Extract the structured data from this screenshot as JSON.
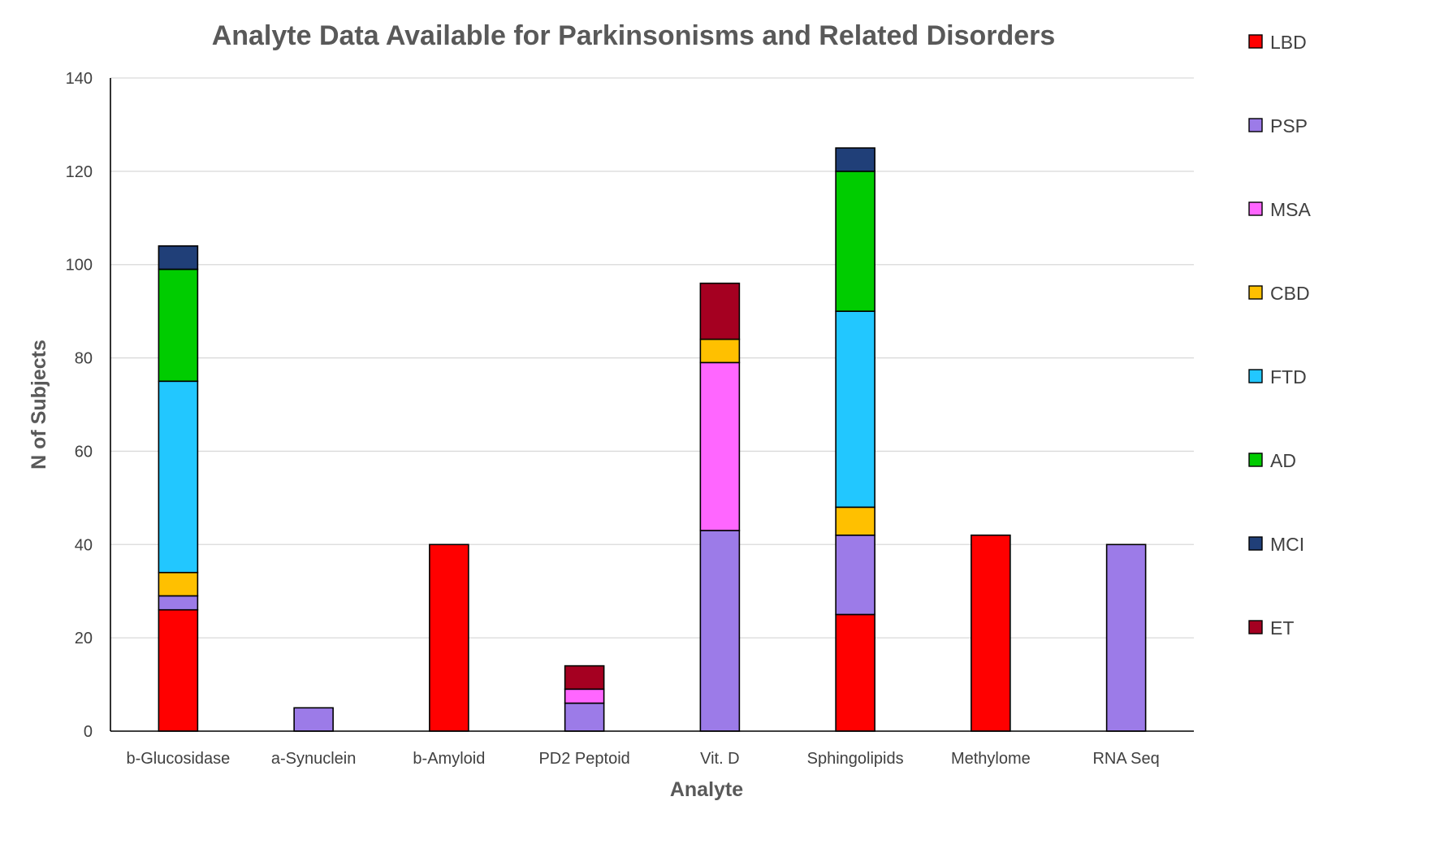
{
  "chart_data": {
    "type": "bar",
    "stacked": true,
    "title": "Analyte Data Available for Parkinsonisms and Related Disorders",
    "xlabel": "Analyte",
    "ylabel": "N of Subjects",
    "ylim": [
      0,
      140
    ],
    "yticks": [
      0,
      20,
      40,
      60,
      80,
      100,
      120,
      140
    ],
    "grid": true,
    "legend_position": "right",
    "categories": [
      "b-Glucosidase",
      "a-Synuclein",
      "b-Amyloid",
      "PD2 Peptoid",
      "Vit. D",
      "Sphingolipids",
      "Methylome",
      "RNA Seq"
    ],
    "series": [
      {
        "name": "LBD",
        "color": "#ff0000",
        "values": [
          26,
          0,
          40,
          0,
          0,
          25,
          42,
          0
        ]
      },
      {
        "name": "PSP",
        "color": "#9c7be8",
        "values": [
          3,
          5,
          0,
          6,
          43,
          17,
          0,
          40
        ]
      },
      {
        "name": "MSA",
        "color": "#ff66ff",
        "values": [
          0,
          0,
          0,
          3,
          36,
          0,
          0,
          0
        ]
      },
      {
        "name": "CBD",
        "color": "#ffc000",
        "values": [
          5,
          0,
          0,
          0,
          5,
          6,
          0,
          0
        ]
      },
      {
        "name": "FTD",
        "color": "#22c7ff",
        "values": [
          41,
          0,
          0,
          0,
          0,
          42,
          0,
          0
        ]
      },
      {
        "name": "AD",
        "color": "#00cc00",
        "values": [
          24,
          0,
          0,
          0,
          0,
          30,
          0,
          0
        ]
      },
      {
        "name": "MCI",
        "color": "#203f78",
        "values": [
          5,
          0,
          0,
          0,
          0,
          5,
          0,
          0
        ]
      },
      {
        "name": "ET",
        "color": "#a50021",
        "values": [
          0,
          0,
          0,
          5,
          12,
          0,
          0,
          0
        ]
      }
    ]
  }
}
